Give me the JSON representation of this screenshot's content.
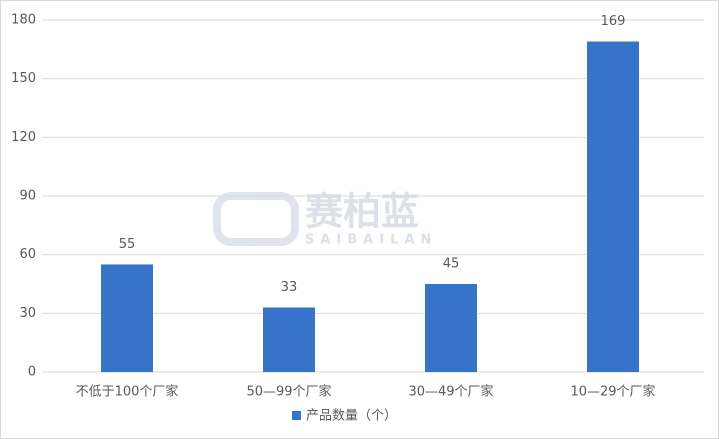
{
  "chart_data": {
    "type": "bar",
    "categories": [
      "不低于100个厂家",
      "50—99个厂家",
      "30—49个厂家",
      "10—29个厂家"
    ],
    "series": [
      {
        "name": "产品数量（个）",
        "color": "#3574c9",
        "values": [
          55,
          33,
          45,
          169
        ]
      }
    ],
    "ylim": [
      0,
      180
    ],
    "yticks": [
      0,
      30,
      60,
      90,
      120,
      150,
      180
    ],
    "grid": true,
    "legend": "bottom",
    "watermark": {
      "title": "赛柏蓝",
      "subtitle": "SAIBAILAN"
    }
  }
}
